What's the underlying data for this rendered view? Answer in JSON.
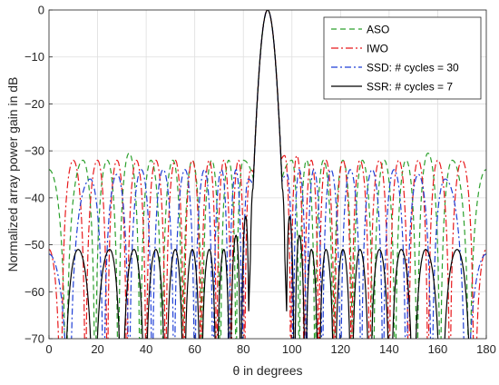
{
  "chart_data": {
    "type": "line",
    "xlabel": "θ in degrees",
    "ylabel": "Normalized array power gain in dB",
    "xlim": [
      0,
      180
    ],
    "ylim": [
      -70,
      0
    ],
    "xticks": [
      0,
      20,
      40,
      60,
      80,
      100,
      120,
      140,
      160,
      180
    ],
    "yticks": [
      0,
      -10,
      -20,
      -30,
      -40,
      -50,
      -60,
      -70
    ],
    "xtick_labels": [
      "0",
      "20",
      "40",
      "60",
      "80",
      "100",
      "120",
      "140",
      "160",
      "180"
    ],
    "ytick_labels": [
      "0",
      "−10",
      "−20",
      "−30",
      "−40",
      "−50",
      "−60",
      "−70"
    ],
    "grid": true,
    "legend_position": "top-right",
    "main_lobe": {
      "center_deg": 90,
      "peak_db": 0
    },
    "series": [
      {
        "name": "ASO",
        "color": "#2ca02c",
        "dash": "6,4",
        "sidelobe_peaks_deg": [
          0,
          14,
          24,
          33,
          42,
          51,
          59,
          67,
          74,
          80,
          100,
          106,
          113,
          121,
          129,
          138,
          147,
          156,
          166,
          180
        ],
        "sidelobe_peaks_db": [
          -34,
          -32,
          -32,
          -30.5,
          -32,
          -32,
          -32,
          -32,
          -32,
          -32,
          -32,
          -32,
          -32,
          -32,
          -32,
          -32,
          -32,
          -30.5,
          -32,
          -34
        ]
      },
      {
        "name": "IWO",
        "color": "#e8191c",
        "dash": "8,3,2,3",
        "sidelobe_peaks_deg": [
          0,
          10,
          20,
          28,
          36,
          44,
          52,
          59,
          66,
          72,
          78,
          83,
          97,
          102,
          108,
          114,
          121,
          128,
          136,
          144,
          152,
          160,
          170,
          180
        ],
        "sidelobe_peaks_db": [
          -51,
          -32,
          -32,
          -32,
          -32,
          -32,
          -32,
          -32,
          -32,
          -32,
          -32,
          -34,
          -31,
          -31,
          -32,
          -32,
          -32,
          -32,
          -32,
          -32,
          -32,
          -32,
          -32,
          -51
        ]
      },
      {
        "name": "SSD: # cycles = 30",
        "color": "#1f3fd6",
        "dash": "7,3,2,3",
        "sidelobe_peaks_deg": [
          0,
          17,
          28,
          38,
          47,
          56,
          64,
          71,
          77,
          82,
          98,
          103,
          109,
          116,
          124,
          133,
          142,
          152,
          163,
          180
        ],
        "sidelobe_peaks_db": [
          -52,
          -36,
          -35,
          -34,
          -34,
          -34,
          -34,
          -34,
          -34,
          -36,
          -35,
          -34,
          -34,
          -34,
          -34,
          -34,
          -34,
          -35,
          -36,
          -52
        ]
      },
      {
        "name": "SSR: # cycles = 7",
        "color": "#000000",
        "dash": "",
        "sidelobe_peaks_deg": [
          12,
          25,
          35,
          44,
          52,
          59,
          66,
          72,
          77,
          81,
          84,
          96,
          99,
          103,
          108,
          114,
          121,
          128,
          136,
          145,
          155,
          168
        ],
        "sidelobe_peaks_db": [
          -51,
          -51,
          -51,
          -51,
          -51,
          -51,
          -51,
          -51,
          -48,
          -44,
          -38,
          -38,
          -44,
          -48,
          -51,
          -51,
          -51,
          -51,
          -51,
          -51,
          -51,
          -51
        ]
      }
    ]
  }
}
